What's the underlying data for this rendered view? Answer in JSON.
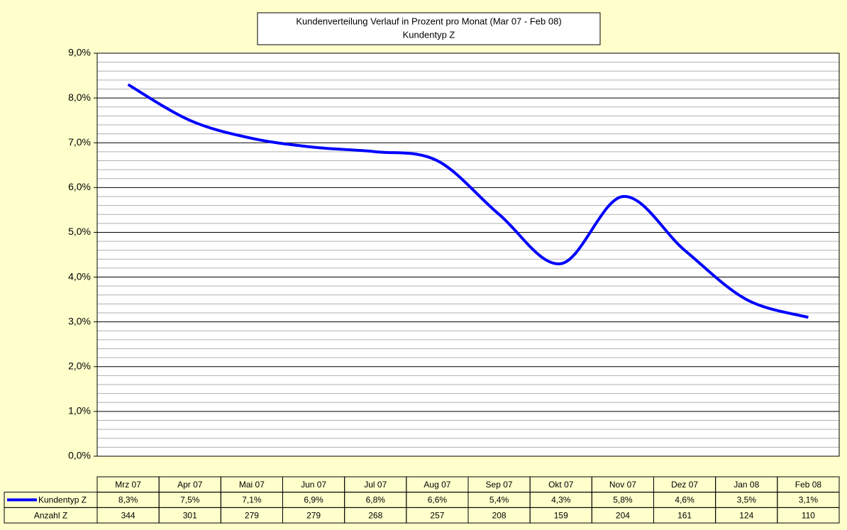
{
  "chart_data": {
    "type": "line",
    "title": "Kundenverteilung Verlauf in Prozent pro Monat (Mar 07 - Feb 08)",
    "subtitle": "Kundentyp Z",
    "categories": [
      "Mrz 07",
      "Apr 07",
      "Mai 07",
      "Jun 07",
      "Jul 07",
      "Aug 07",
      "Sep 07",
      "Okt 07",
      "Nov 07",
      "Dez 07",
      "Jan 08",
      "Feb 08"
    ],
    "series": [
      {
        "name": "Kundentyp Z",
        "color": "#0000ff",
        "values": [
          8.3,
          7.5,
          7.1,
          6.9,
          6.8,
          6.6,
          5.4,
          4.3,
          5.8,
          4.6,
          3.5,
          3.1
        ],
        "value_labels": [
          "8,3%",
          "7,5%",
          "7,1%",
          "6,9%",
          "6,8%",
          "6,6%",
          "5,4%",
          "4,3%",
          "5,8%",
          "4,6%",
          "3,5%",
          "3,1%"
        ]
      }
    ],
    "table_rows": [
      {
        "name": "Anzahl Z",
        "values": [
          344,
          301,
          279,
          279,
          268,
          257,
          208,
          159,
          204,
          161,
          124,
          110
        ]
      }
    ],
    "ylim": [
      0,
      9
    ],
    "yticks": [
      {
        "value": 0,
        "label": "0,0%"
      },
      {
        "value": 1,
        "label": "1,0%"
      },
      {
        "value": 2,
        "label": "2,0%"
      },
      {
        "value": 3,
        "label": "3,0%"
      },
      {
        "value": 4,
        "label": "4,0%"
      },
      {
        "value": 5,
        "label": "5,0%"
      },
      {
        "value": 6,
        "label": "6,0%"
      },
      {
        "value": 7,
        "label": "7,0%"
      },
      {
        "value": 8,
        "label": "8,0%"
      },
      {
        "value": 9,
        "label": "9,0%"
      }
    ],
    "grid": true,
    "smooth": true
  }
}
